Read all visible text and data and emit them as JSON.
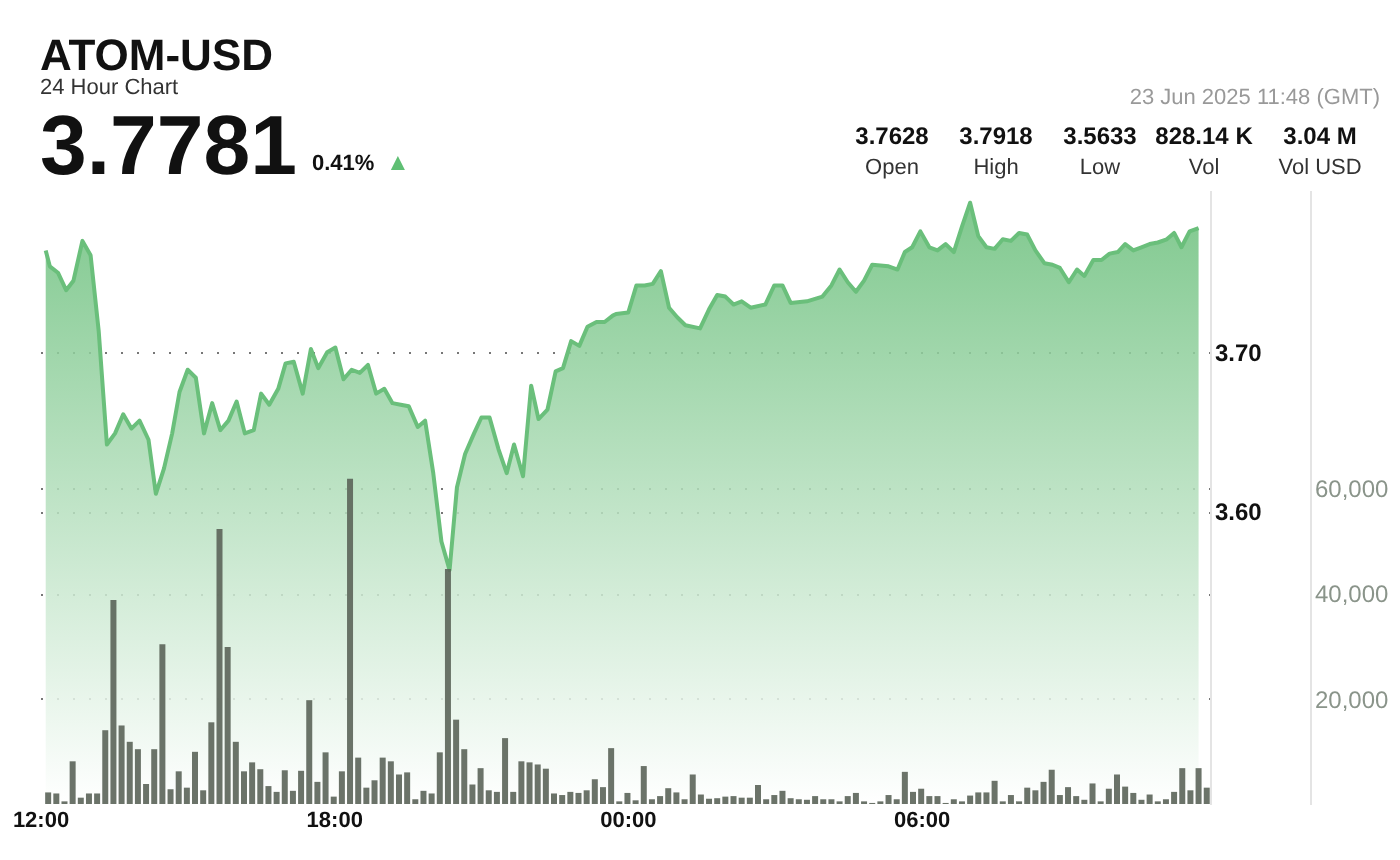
{
  "chart_data": {
    "type": "area",
    "title": "ATOM-USD",
    "subtitle": "24 Hour Chart",
    "annotations": [
      "3.7781",
      "0.41%",
      "▲",
      "23 Jun 2025 11:48 (GMT)",
      "3.7628",
      "Open",
      "3.7918",
      "High",
      "3.5633",
      "Low",
      "828.14 K",
      "Vol",
      "3.04 M",
      "Vol USD"
    ],
    "xlim": [
      "2025-06-22T12:00",
      "2025-06-23T11:54"
    ],
    "xticks": [
      {
        "value": "2025-06-22T12:00",
        "label": "12:00"
      },
      {
        "value": "2025-06-22T18:00",
        "label": "18:00"
      },
      {
        "value": "2025-06-23T00:00",
        "label": "00:00"
      },
      {
        "value": "2025-06-23T06:00",
        "label": "06:00"
      }
    ],
    "ylim": [
      3.416,
      3.802
    ],
    "yticks": [
      {
        "value": 3.6,
        "label": "3.60"
      },
      {
        "value": 3.7,
        "label": "3.70"
      }
    ],
    "y2lim": [
      0,
      116500
    ],
    "y2ticks": [
      {
        "value": 20000,
        "label": "20,000"
      },
      {
        "value": 40000,
        "label": "40,000"
      },
      {
        "value": 60000,
        "label": "60,000"
      }
    ],
    "grid": "y",
    "line_style": "solid",
    "series": [
      {
        "axis": "y",
        "color": "#6abf7b",
        "x": [
          "2025-06-22T12:07",
          "2025-06-22T12:12",
          "2025-06-22T12:22",
          "2025-06-22T12:32",
          "2025-06-22T12:41",
          "2025-06-22T12:52",
          "2025-06-22T13:02",
          "2025-06-22T13:12",
          "2025-06-22T13:22",
          "2025-06-22T13:32",
          "2025-06-22T13:42",
          "2025-06-22T13:52",
          "2025-06-22T14:02",
          "2025-06-22T14:13",
          "2025-06-22T14:22",
          "2025-06-22T14:32",
          "2025-06-22T14:42",
          "2025-06-22T14:51",
          "2025-06-22T15:01",
          "2025-06-22T15:11",
          "2025-06-22T15:21",
          "2025-06-22T15:31",
          "2025-06-22T15:41",
          "2025-06-22T15:51",
          "2025-06-22T16:01",
          "2025-06-22T16:11",
          "2025-06-22T16:22",
          "2025-06-22T16:31",
          "2025-06-22T16:41",
          "2025-06-22T16:52",
          "2025-06-22T17:01",
          "2025-06-22T17:11",
          "2025-06-22T17:22",
          "2025-06-22T17:32",
          "2025-06-22T17:41",
          "2025-06-22T17:52",
          "2025-06-22T18:02",
          "2025-06-22T18:12",
          "2025-06-22T18:22",
          "2025-06-22T18:32",
          "2025-06-22T18:42",
          "2025-06-22T18:52",
          "2025-06-22T19:02",
          "2025-06-22T19:12",
          "2025-06-22T19:22",
          "2025-06-22T19:32",
          "2025-06-22T19:43",
          "2025-06-22T19:52",
          "2025-06-22T20:02",
          "2025-06-22T20:12",
          "2025-06-22T20:22",
          "2025-06-22T20:31",
          "2025-06-22T20:41",
          "2025-06-22T20:52",
          "2025-06-22T21:01",
          "2025-06-22T21:11",
          "2025-06-22T21:22",
          "2025-06-22T21:32",
          "2025-06-22T21:41",
          "2025-06-22T21:52",
          "2025-06-22T22:02",
          "2025-06-22T22:11",
          "2025-06-22T22:22",
          "2025-06-22T22:32",
          "2025-06-22T22:41",
          "2025-06-22T22:51",
          "2025-06-22T23:01",
          "2025-06-22T23:11",
          "2025-06-22T23:22",
          "2025-06-22T23:32",
          "2025-06-22T23:42",
          "2025-06-22T23:46",
          "2025-06-23T00:01",
          "2025-06-23T00:11",
          "2025-06-23T00:21",
          "2025-06-23T00:31",
          "2025-06-23T00:41",
          "2025-06-23T00:51",
          "2025-06-23T01:01",
          "2025-06-23T01:11",
          "2025-06-23T01:29",
          "2025-06-23T01:40",
          "2025-06-23T01:50",
          "2025-06-23T02:00",
          "2025-06-23T02:10",
          "2025-06-23T02:20",
          "2025-06-23T02:31",
          "2025-06-23T02:49",
          "2025-06-23T03:00",
          "2025-06-23T03:10",
          "2025-06-23T03:20",
          "2025-06-23T03:40",
          "2025-06-23T03:59",
          "2025-06-23T04:10",
          "2025-06-23T04:20",
          "2025-06-23T04:30",
          "2025-06-23T04:40",
          "2025-06-23T04:50",
          "2025-06-23T05:00",
          "2025-06-23T05:20",
          "2025-06-23T05:31",
          "2025-06-23T05:40",
          "2025-06-23T05:49",
          "2025-06-23T05:59",
          "2025-06-23T06:10",
          "2025-06-23T06:20",
          "2025-06-23T06:30",
          "2025-06-23T06:40",
          "2025-06-23T06:50",
          "2025-06-23T07:00",
          "2025-06-23T07:10",
          "2025-06-23T07:20",
          "2025-06-23T07:30",
          "2025-06-23T07:40",
          "2025-06-23T07:50",
          "2025-06-23T08:00",
          "2025-06-23T08:10",
          "2025-06-23T08:20",
          "2025-06-23T08:31",
          "2025-06-23T08:41",
          "2025-06-23T08:50",
          "2025-06-23T09:01",
          "2025-06-23T09:11",
          "2025-06-23T09:20",
          "2025-06-23T09:31",
          "2025-06-23T09:41",
          "2025-06-23T09:51",
          "2025-06-23T10:01",
          "2025-06-23T10:10",
          "2025-06-23T10:20",
          "2025-06-23T10:30",
          "2025-06-23T10:40",
          "2025-06-23T10:50",
          "2025-06-23T11:01",
          "2025-06-23T11:10",
          "2025-06-23T11:19",
          "2025-06-23T11:29",
          "2025-06-23T11:40"
        ],
        "values": [
          3.764,
          3.754,
          3.75,
          3.739,
          3.745,
          3.77,
          3.761,
          3.713,
          3.642,
          3.649,
          3.661,
          3.652,
          3.657,
          3.645,
          3.611,
          3.627,
          3.649,
          3.675,
          3.689,
          3.684,
          3.649,
          3.668,
          3.651,
          3.657,
          3.669,
          3.649,
          3.651,
          3.674,
          3.667,
          3.677,
          3.693,
          3.694,
          3.674,
          3.702,
          3.69,
          3.7,
          3.703,
          3.683,
          3.689,
          3.687,
          3.692,
          3.674,
          3.677,
          3.668,
          3.667,
          3.666,
          3.653,
          3.657,
          3.624,
          3.581,
          3.563,
          3.615,
          3.636,
          3.649,
          3.659,
          3.659,
          3.639,
          3.624,
          3.642,
          3.622,
          3.679,
          3.658,
          3.664,
          3.688,
          3.69,
          3.707,
          3.704,
          3.716,
          3.719,
          3.719,
          3.723,
          3.724,
          3.725,
          3.742,
          3.742,
          3.743,
          3.751,
          3.728,
          3.722,
          3.717,
          3.715,
          3.727,
          3.736,
          3.735,
          3.73,
          3.732,
          3.728,
          3.73,
          3.742,
          3.742,
          3.731,
          3.732,
          3.735,
          3.742,
          3.752,
          3.744,
          3.738,
          3.745,
          3.755,
          3.754,
          3.752,
          3.763,
          3.766,
          3.776,
          3.766,
          3.764,
          3.768,
          3.763,
          3.779,
          3.794,
          3.773,
          3.766,
          3.765,
          3.771,
          3.77,
          3.775,
          3.774,
          3.764,
          3.756,
          3.755,
          3.753,
          3.744,
          3.752,
          3.748,
          3.758,
          3.758,
          3.762,
          3.763,
          3.768,
          3.764,
          3.766,
          3.768,
          3.769,
          3.771,
          3.775,
          3.766,
          3.776,
          3.778
        ]
      },
      {
        "type": "bar",
        "axis": "y2",
        "color": "#5b6459",
        "x": [
          "2025-06-22T12:10",
          "2025-06-22T12:20",
          "2025-06-22T12:30",
          "2025-06-22T12:40",
          "2025-06-22T12:50",
          "2025-06-22T13:00",
          "2025-06-22T13:10",
          "2025-06-22T13:20",
          "2025-06-22T13:30",
          "2025-06-22T13:40",
          "2025-06-22T13:50",
          "2025-06-22T14:00",
          "2025-06-22T14:10",
          "2025-06-22T14:20",
          "2025-06-22T14:30",
          "2025-06-22T14:40",
          "2025-06-22T14:50",
          "2025-06-22T15:00",
          "2025-06-22T15:10",
          "2025-06-22T15:20",
          "2025-06-22T15:30",
          "2025-06-22T15:40",
          "2025-06-22T15:50",
          "2025-06-22T16:00",
          "2025-06-22T16:10",
          "2025-06-22T16:20",
          "2025-06-22T16:30",
          "2025-06-22T16:40",
          "2025-06-22T16:50",
          "2025-06-22T17:00",
          "2025-06-22T17:10",
          "2025-06-22T17:20",
          "2025-06-22T17:30",
          "2025-06-22T17:40",
          "2025-06-22T17:50",
          "2025-06-22T18:00",
          "2025-06-22T18:10",
          "2025-06-22T18:20",
          "2025-06-22T18:30",
          "2025-06-22T18:40",
          "2025-06-22T18:50",
          "2025-06-22T19:00",
          "2025-06-22T19:10",
          "2025-06-22T19:20",
          "2025-06-22T19:30",
          "2025-06-22T19:40",
          "2025-06-22T19:50",
          "2025-06-22T20:00",
          "2025-06-22T20:10",
          "2025-06-22T20:20",
          "2025-06-22T20:30",
          "2025-06-22T20:40",
          "2025-06-22T20:50",
          "2025-06-22T21:00",
          "2025-06-22T21:10",
          "2025-06-22T21:20",
          "2025-06-22T21:30",
          "2025-06-22T21:40",
          "2025-06-22T21:50",
          "2025-06-22T22:00",
          "2025-06-22T22:10",
          "2025-06-22T22:20",
          "2025-06-22T22:30",
          "2025-06-22T22:40",
          "2025-06-22T22:50",
          "2025-06-22T23:00",
          "2025-06-22T23:10",
          "2025-06-22T23:20",
          "2025-06-22T23:30",
          "2025-06-22T23:40",
          "2025-06-22T23:50",
          "2025-06-23T00:00",
          "2025-06-23T00:10",
          "2025-06-23T00:20",
          "2025-06-23T00:30",
          "2025-06-23T00:40",
          "2025-06-23T00:50",
          "2025-06-23T01:00",
          "2025-06-23T01:10",
          "2025-06-23T01:20",
          "2025-06-23T01:30",
          "2025-06-23T01:40",
          "2025-06-23T01:50",
          "2025-06-23T02:00",
          "2025-06-23T02:10",
          "2025-06-23T02:20",
          "2025-06-23T02:30",
          "2025-06-23T02:40",
          "2025-06-23T02:50",
          "2025-06-23T03:00",
          "2025-06-23T03:10",
          "2025-06-23T03:20",
          "2025-06-23T03:30",
          "2025-06-23T03:40",
          "2025-06-23T03:50",
          "2025-06-23T04:00",
          "2025-06-23T04:10",
          "2025-06-23T04:20",
          "2025-06-23T04:30",
          "2025-06-23T04:40",
          "2025-06-23T04:50",
          "2025-06-23T05:00",
          "2025-06-23T05:10",
          "2025-06-23T05:20",
          "2025-06-23T05:30",
          "2025-06-23T05:40",
          "2025-06-23T05:50",
          "2025-06-23T06:00",
          "2025-06-23T06:10",
          "2025-06-23T06:20",
          "2025-06-23T06:30",
          "2025-06-23T06:40",
          "2025-06-23T06:50",
          "2025-06-23T07:00",
          "2025-06-23T07:10",
          "2025-06-23T07:20",
          "2025-06-23T07:30",
          "2025-06-23T07:40",
          "2025-06-23T07:50",
          "2025-06-23T08:00",
          "2025-06-23T08:10",
          "2025-06-23T08:20",
          "2025-06-23T08:30",
          "2025-06-23T08:40",
          "2025-06-23T08:50",
          "2025-06-23T09:00",
          "2025-06-23T09:10",
          "2025-06-23T09:20",
          "2025-06-23T09:30",
          "2025-06-23T09:40",
          "2025-06-23T09:50",
          "2025-06-23T10:00",
          "2025-06-23T10:10",
          "2025-06-23T10:20",
          "2025-06-23T10:30",
          "2025-06-23T10:40",
          "2025-06-23T10:50",
          "2025-06-23T11:00",
          "2025-06-23T11:10",
          "2025-06-23T11:20",
          "2025-06-23T11:30",
          "2025-06-23T11:40",
          "2025-06-23T11:50"
        ],
        "values": [
          2200,
          2000,
          500,
          8100,
          1200,
          2000,
          2000,
          14000,
          38700,
          14900,
          11800,
          10400,
          3800,
          10400,
          30300,
          2800,
          6200,
          3100,
          9900,
          2600,
          15500,
          52200,
          29800,
          11800,
          6200,
          7900,
          6600,
          3400,
          2300,
          6400,
          2500,
          6300,
          19700,
          4200,
          9800,
          1400,
          6200,
          61700,
          8800,
          3100,
          4500,
          8800,
          8100,
          5600,
          6000,
          900,
          2500,
          2000,
          9800,
          44600,
          16000,
          10400,
          3700,
          6800,
          2600,
          2300,
          12500,
          2300,
          8100,
          7900,
          7500,
          6700,
          2000,
          1700,
          2300,
          2100,
          2600,
          4700,
          3200,
          10600,
          500,
          2100,
          700,
          7200,
          900,
          1500,
          3000,
          2200,
          900,
          5600,
          1800,
          1000,
          1100,
          1400,
          1500,
          1200,
          1200,
          3600,
          900,
          1700,
          2500,
          1100,
          900,
          800,
          1500,
          900,
          900,
          500,
          1500,
          2100,
          500,
          200,
          500,
          1700,
          900,
          6100,
          2300,
          2900,
          1500,
          1500,
          200,
          900,
          500,
          1600,
          2200,
          2200,
          4400,
          500,
          1700,
          500,
          3100,
          2600,
          4200,
          6500,
          1700,
          3200,
          1500,
          800,
          3900,
          500,
          2900,
          5600,
          3300,
          2100,
          800,
          1800,
          500,
          900,
          2300,
          6800,
          2600,
          6800,
          3100
        ]
      }
    ]
  }
}
